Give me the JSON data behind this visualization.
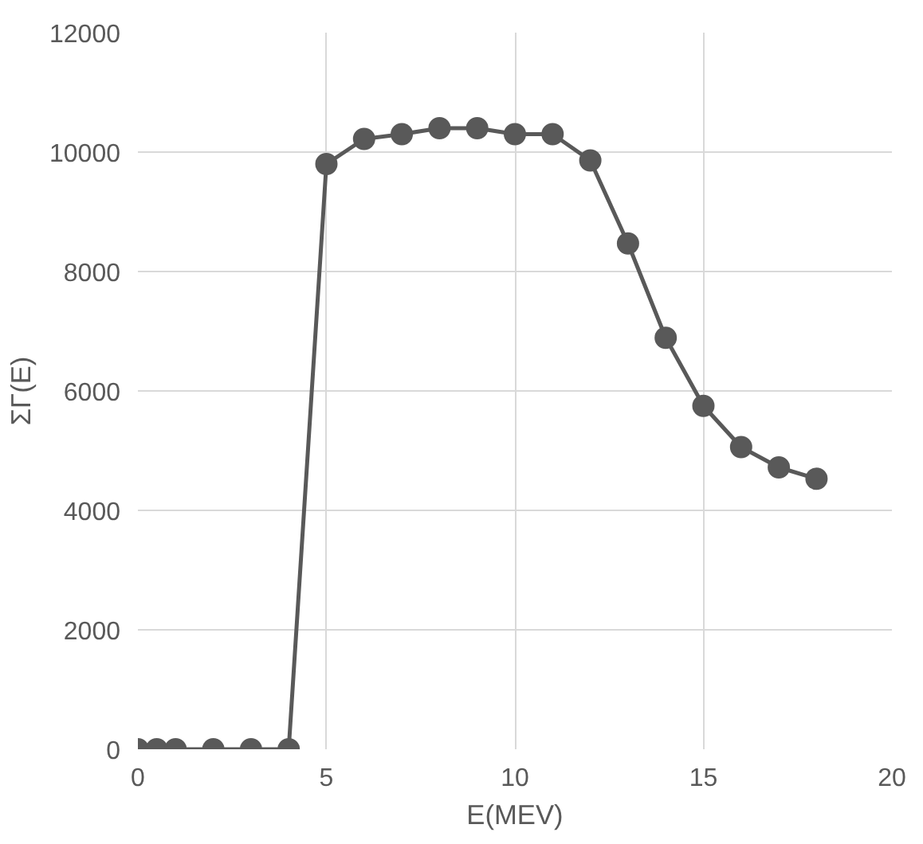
{
  "chart_data": {
    "type": "line",
    "xlabel": "E(MEV)",
    "ylabel": "ΣΓ(E)",
    "x": [
      0,
      0.5,
      1,
      2,
      3,
      4,
      5,
      6,
      7,
      8,
      9,
      10,
      11,
      12,
      13,
      14,
      15,
      16,
      17,
      18
    ],
    "series": [
      {
        "color": "#595959",
        "values": [
          0,
          0,
          0,
          0,
          0,
          0,
          9800,
          10220,
          10300,
          10400,
          10400,
          10300,
          10300,
          9860,
          8470,
          6890,
          5750,
          5060,
          4720,
          4530
        ]
      }
    ],
    "xlim": [
      0,
      20
    ],
    "xticks": [
      0,
      5,
      10,
      15,
      20
    ],
    "ylim": [
      0,
      12000
    ],
    "yticks": [
      0,
      2000,
      4000,
      6000,
      8000,
      10000,
      12000
    ],
    "grid": true,
    "marker": "circle",
    "line_style": "solid"
  }
}
